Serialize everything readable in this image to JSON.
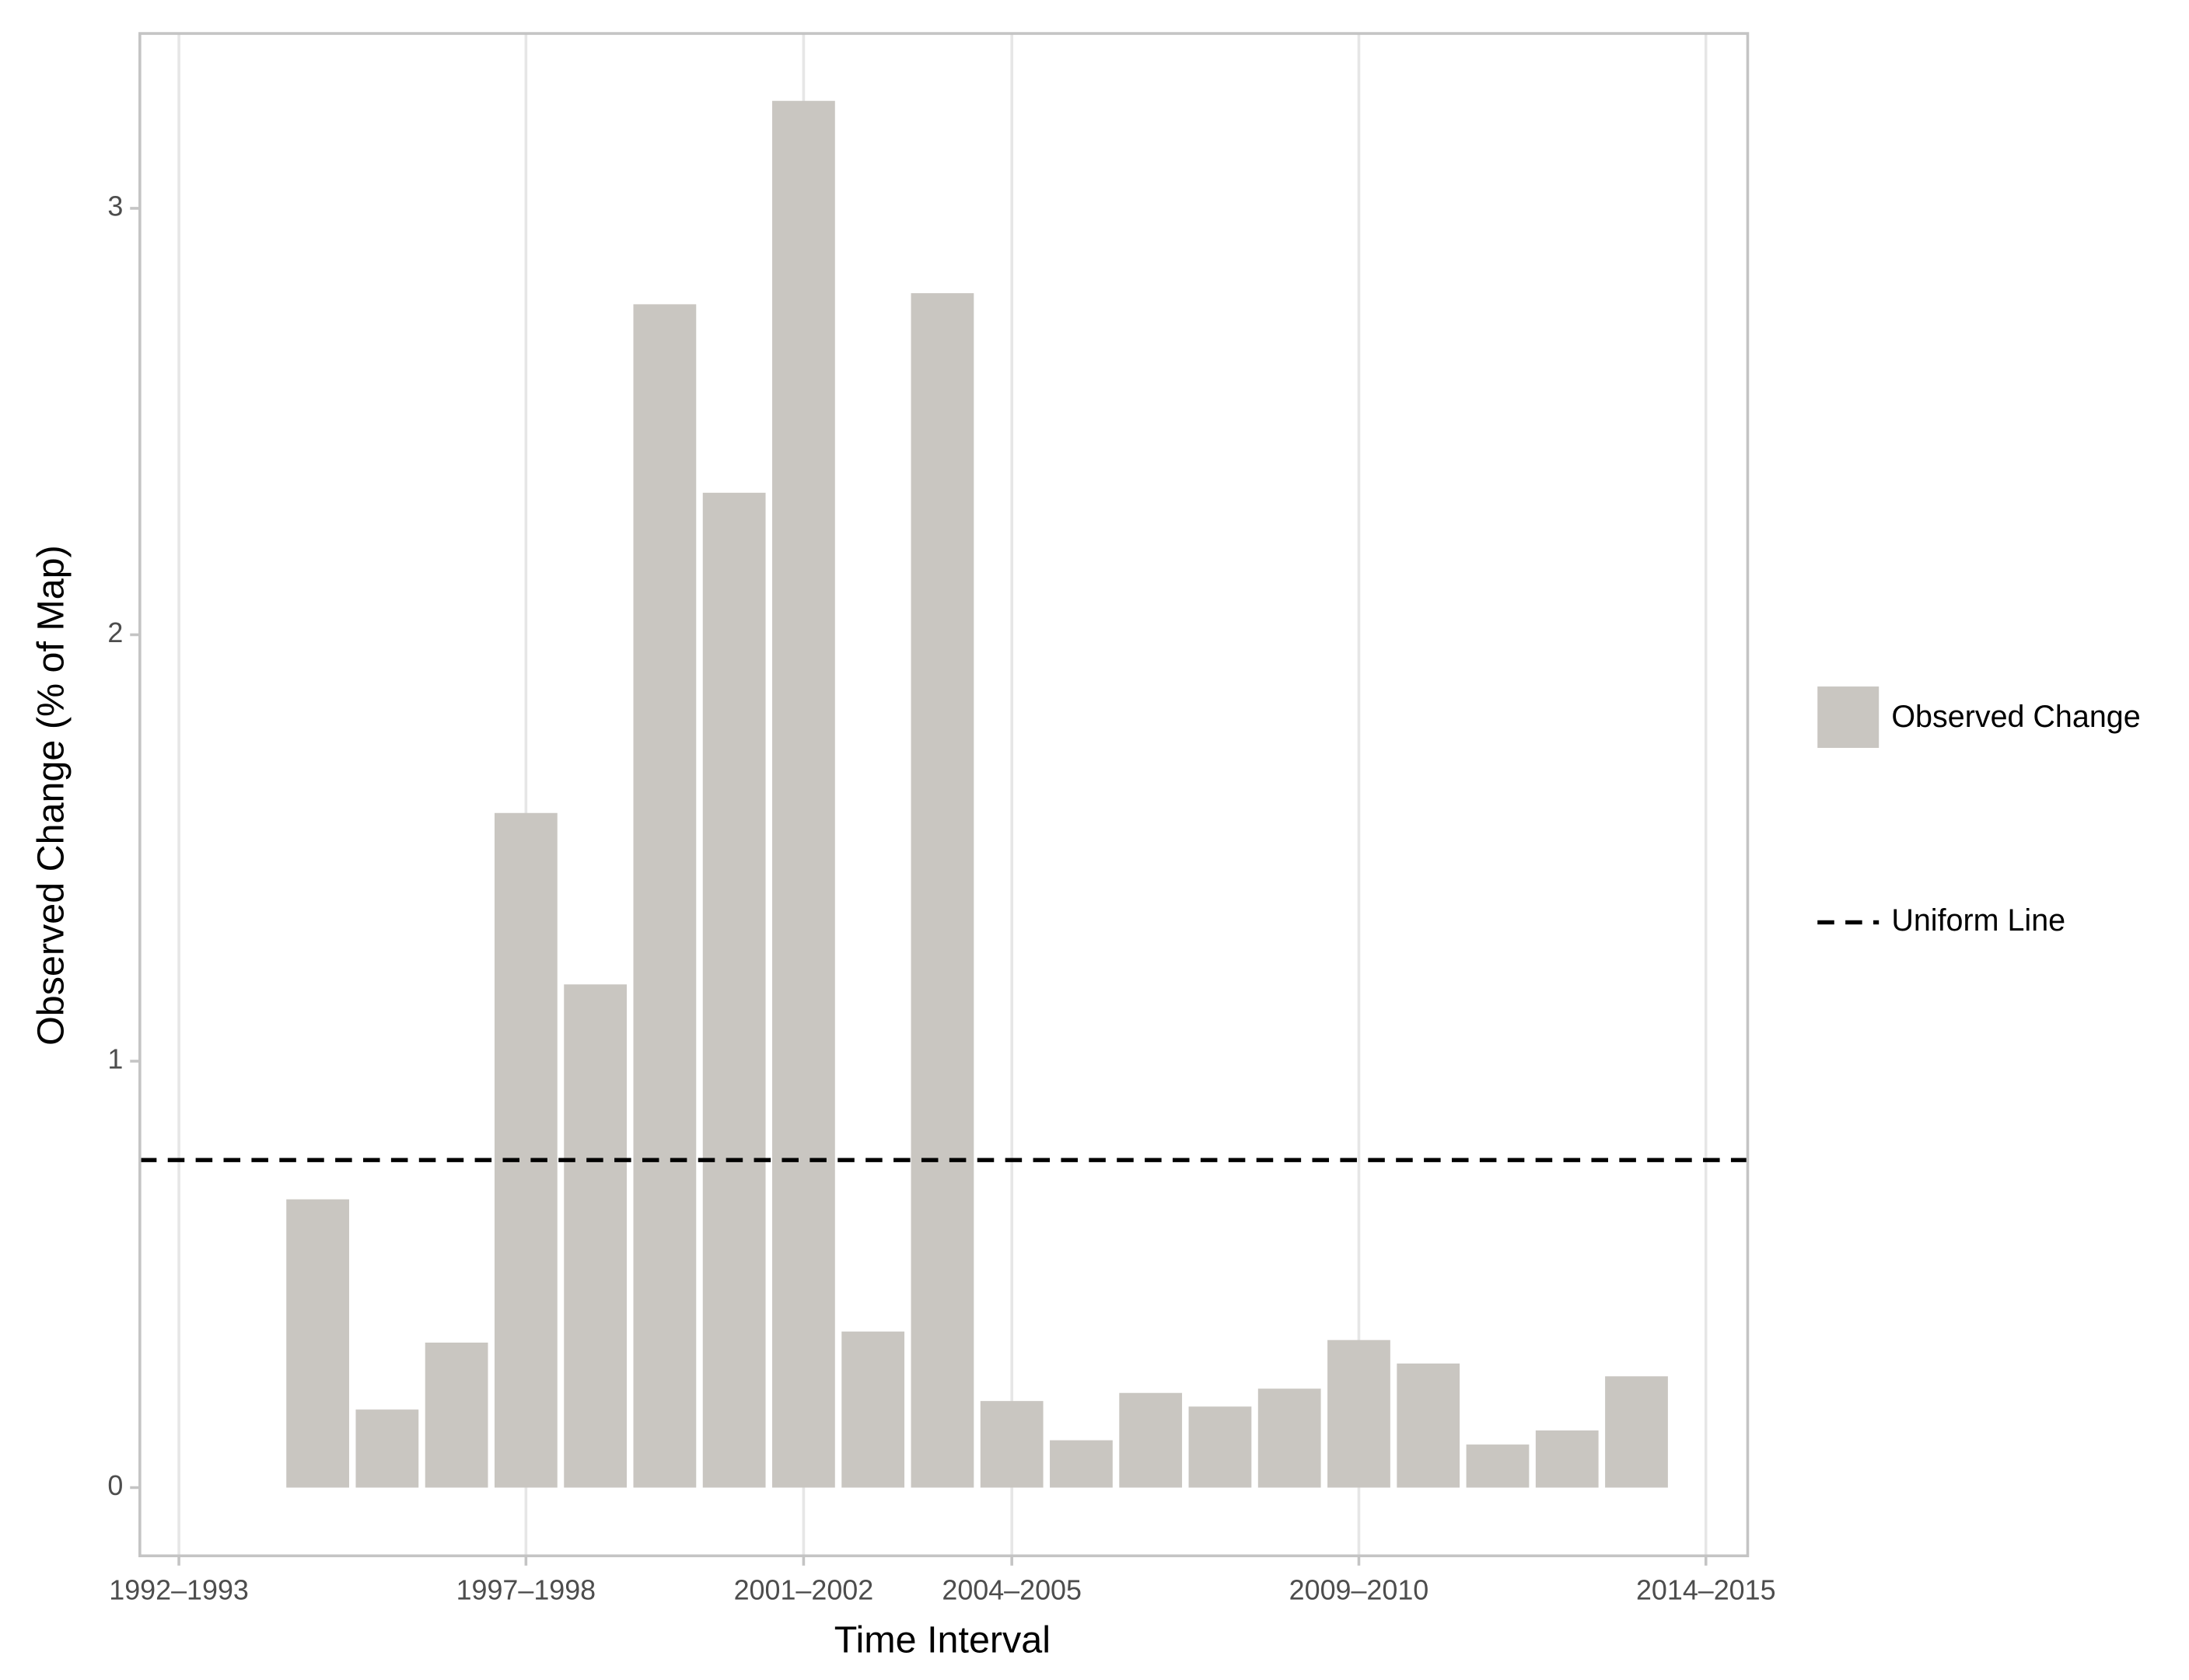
{
  "chart_data": {
    "type": "bar",
    "x_label": "Time Interval",
    "y_label": "Observed Change (% of Map)",
    "categories": [
      "1992–1993",
      null,
      null,
      null,
      null,
      "1997–1998",
      null,
      null,
      null,
      "2001–2002",
      null,
      null,
      "2004–2005",
      null,
      null,
      null,
      null,
      "2009–2010",
      null,
      null,
      null,
      null,
      "2014–2015"
    ],
    "series": [
      {
        "name": "Observed Change",
        "color": "#c9c6c1",
        "values": [
          null,
          null,
          0.676,
          0.183,
          0.34,
          1.582,
          1.18,
          2.775,
          2.333,
          3.252,
          0.366,
          2.801,
          0.203,
          0.111,
          0.222,
          0.19,
          0.232,
          0.346,
          0.291,
          0.101,
          0.134,
          0.261,
          null
        ]
      }
    ],
    "reference_line": {
      "name": "Uniform Line",
      "value": 0.768,
      "color": "#000000",
      "dashed": true
    },
    "ylim": [
      -0.16,
      3.41
    ],
    "yticks": [
      0,
      1,
      2,
      3
    ],
    "minor_yticks": [
      0.5,
      1.5,
      2.5
    ],
    "grid": true,
    "legend": "right"
  }
}
